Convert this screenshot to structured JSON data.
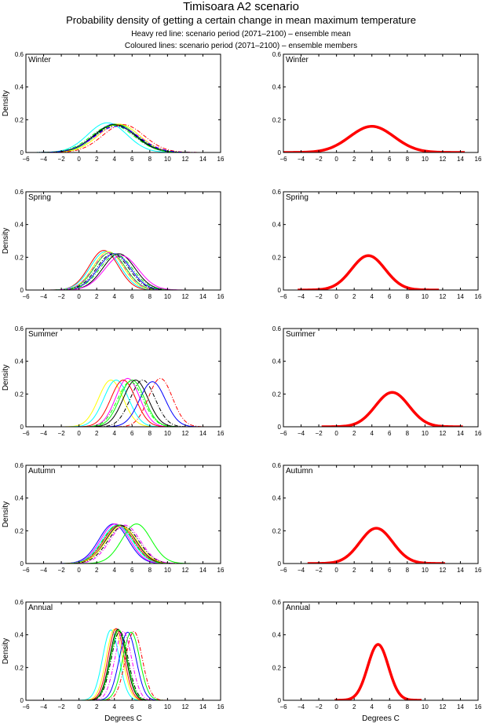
{
  "title": "Timisoara A2 scenario",
  "subtitle": "Probability density of getting a certain change in mean maximum temperature",
  "note1": "Heavy red line: scenario period (2071–2100) – ensemble mean",
  "note2": "Coloured lines: scenario period (2071–2100) – ensemble members",
  "chart_data": {
    "type": "line",
    "xlabel": "Degrees C",
    "ylabel": "Density",
    "xlim": [
      -6,
      16
    ],
    "ylim": [
      0,
      0.6
    ],
    "xticks": [
      "-6",
      "-4",
      "-2",
      "0",
      "2",
      "4",
      "6",
      "8",
      "10",
      "12",
      "14",
      "16"
    ],
    "yticks": [
      "0",
      "0.2",
      "0.4",
      "0.6"
    ],
    "mean_color": "#ff0000",
    "panels": [
      {
        "season": "Winter",
        "ensemble_mean": {
          "mean": 4.0,
          "sd": 2.5
        },
        "members": [
          {
            "mean": 3.2,
            "sd": 2.2,
            "color": "#00ffff",
            "style": "solid"
          },
          {
            "mean": 4.0,
            "sd": 2.3,
            "color": "#0000ff",
            "style": "solid"
          },
          {
            "mean": 4.2,
            "sd": 2.3,
            "color": "#00ff00",
            "style": "solid"
          },
          {
            "mean": 4.5,
            "sd": 2.3,
            "color": "#ffff00",
            "style": "solid"
          },
          {
            "mean": 4.0,
            "sd": 2.35,
            "color": "#000000",
            "style": "solid"
          },
          {
            "mean": 4.3,
            "sd": 2.5,
            "color": "#ff00ff",
            "style": "dashdot"
          },
          {
            "mean": 4.1,
            "sd": 2.4,
            "color": "#000000",
            "style": "dashdot"
          },
          {
            "mean": 5.0,
            "sd": 2.35,
            "color": "#ff0000",
            "style": "dashdot"
          },
          {
            "mean": 3.8,
            "sd": 2.4,
            "color": "#00ff00",
            "style": "dashdot"
          },
          {
            "mean": 4.2,
            "sd": 2.5,
            "color": "#0000ff",
            "style": "dashdot"
          }
        ]
      },
      {
        "season": "Spring",
        "ensemble_mean": {
          "mean": 3.6,
          "sd": 1.9
        },
        "members": [
          {
            "mean": 2.8,
            "sd": 1.65,
            "color": "#ff0000",
            "style": "solid"
          },
          {
            "mean": 3.0,
            "sd": 1.7,
            "color": "#00ffff",
            "style": "solid"
          },
          {
            "mean": 3.3,
            "sd": 1.7,
            "color": "#ffff00",
            "style": "solid"
          },
          {
            "mean": 3.5,
            "sd": 1.75,
            "color": "#00ff00",
            "style": "solid"
          },
          {
            "mean": 4.0,
            "sd": 1.8,
            "color": "#0000ff",
            "style": "solid"
          },
          {
            "mean": 4.5,
            "sd": 1.8,
            "color": "#000000",
            "style": "solid"
          },
          {
            "mean": 4.8,
            "sd": 1.9,
            "color": "#ff00ff",
            "style": "solid"
          },
          {
            "mean": 3.8,
            "sd": 1.8,
            "color": "#000000",
            "style": "dashdot"
          },
          {
            "mean": 4.2,
            "sd": 1.85,
            "color": "#00ff00",
            "style": "dashdot"
          },
          {
            "mean": 3.4,
            "sd": 1.75,
            "color": "#ff00ff",
            "style": "dashdot"
          }
        ]
      },
      {
        "season": "Summer",
        "ensemble_mean": {
          "mean": 6.3,
          "sd": 1.9
        },
        "members": [
          {
            "mean": 3.6,
            "sd": 1.4,
            "color": "#ffff00",
            "style": "solid"
          },
          {
            "mean": 4.2,
            "sd": 1.4,
            "color": "#00ffff",
            "style": "solid"
          },
          {
            "mean": 5.5,
            "sd": 1.35,
            "color": "#ff00ff",
            "style": "solid"
          },
          {
            "mean": 6.0,
            "sd": 1.4,
            "color": "#00ff00",
            "style": "solid"
          },
          {
            "mean": 6.4,
            "sd": 1.4,
            "color": "#000000",
            "style": "solid"
          },
          {
            "mean": 8.3,
            "sd": 1.45,
            "color": "#0000ff",
            "style": "solid"
          },
          {
            "mean": 5.0,
            "sd": 1.4,
            "color": "#ff0000",
            "style": "solid"
          },
          {
            "mean": 9.2,
            "sd": 1.35,
            "color": "#ff0000",
            "style": "dashdot"
          },
          {
            "mean": 7.2,
            "sd": 1.4,
            "color": "#000000",
            "style": "dashdot"
          },
          {
            "mean": 5.8,
            "sd": 1.45,
            "color": "#00ff00",
            "style": "dashdot"
          }
        ]
      },
      {
        "season": "Autumn",
        "ensemble_mean": {
          "mean": 4.5,
          "sd": 1.85
        },
        "members": [
          {
            "mean": 3.9,
            "sd": 1.65,
            "color": "#0000ff",
            "style": "solid"
          },
          {
            "mean": 4.1,
            "sd": 1.65,
            "color": "#ff00ff",
            "style": "solid"
          },
          {
            "mean": 4.3,
            "sd": 1.7,
            "color": "#00ffff",
            "style": "solid"
          },
          {
            "mean": 4.5,
            "sd": 1.7,
            "color": "#ff0000",
            "style": "solid"
          },
          {
            "mean": 4.7,
            "sd": 1.7,
            "color": "#000000",
            "style": "solid"
          },
          {
            "mean": 6.5,
            "sd": 1.65,
            "color": "#00ff00",
            "style": "solid"
          },
          {
            "mean": 4.8,
            "sd": 1.75,
            "color": "#ffff00",
            "style": "solid"
          },
          {
            "mean": 5.0,
            "sd": 1.75,
            "color": "#000000",
            "style": "dashdot"
          },
          {
            "mean": 4.4,
            "sd": 1.7,
            "color": "#00ff00",
            "style": "dashdot"
          },
          {
            "mean": 5.2,
            "sd": 1.7,
            "color": "#ff00ff",
            "style": "dashdot"
          }
        ]
      },
      {
        "season": "Annual",
        "ensemble_mean": {
          "mean": 4.7,
          "sd": 1.17
        },
        "members": [
          {
            "mean": 3.6,
            "sd": 0.93,
            "color": "#00ffff",
            "style": "solid"
          },
          {
            "mean": 4.0,
            "sd": 0.92,
            "color": "#ffff00",
            "style": "solid"
          },
          {
            "mean": 4.2,
            "sd": 0.91,
            "color": "#ff0000",
            "style": "solid"
          },
          {
            "mean": 4.4,
            "sd": 0.92,
            "color": "#000000",
            "style": "solid"
          },
          {
            "mean": 4.5,
            "sd": 0.93,
            "color": "#00ff00",
            "style": "solid"
          },
          {
            "mean": 5.5,
            "sd": 0.96,
            "color": "#0000ff",
            "style": "solid"
          },
          {
            "mean": 5.9,
            "sd": 0.96,
            "color": "#00ff00",
            "style": "solid"
          },
          {
            "mean": 6.2,
            "sd": 0.95,
            "color": "#ff0000",
            "style": "dashdot"
          },
          {
            "mean": 5.0,
            "sd": 0.95,
            "color": "#ff00ff",
            "style": "dashdot"
          },
          {
            "mean": 4.6,
            "sd": 0.95,
            "color": "#000000",
            "style": "dashdot"
          }
        ]
      }
    ]
  }
}
